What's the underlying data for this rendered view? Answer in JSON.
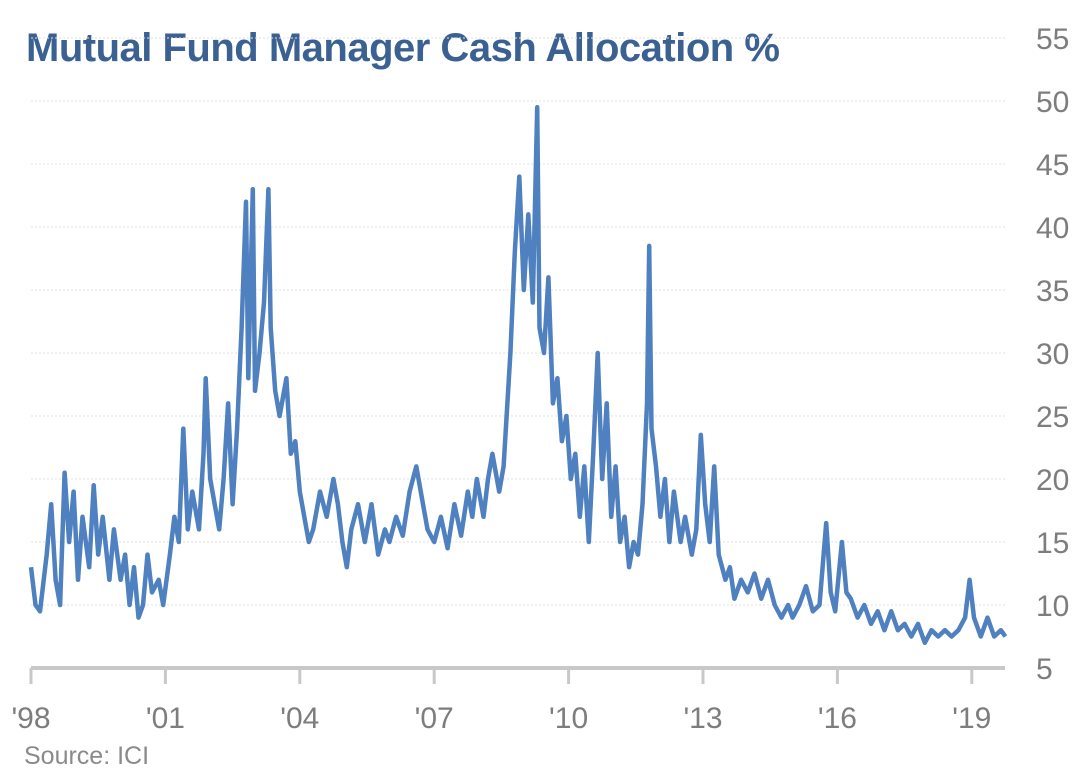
{
  "chart_data": {
    "type": "line",
    "title": "Mutual Fund Manager Cash Allocation %",
    "source": "Source: ICI",
    "xlabel": "",
    "ylabel": "",
    "ylim": [
      5,
      55
    ],
    "xlim": [
      1998,
      2019.75
    ],
    "y_ticks": [
      5,
      10,
      15,
      20,
      25,
      30,
      35,
      40,
      45,
      50,
      55
    ],
    "y_tick_labels": [
      "5",
      "10",
      "15",
      "20",
      "25",
      "30",
      "35",
      "40",
      "45",
      "50",
      "55"
    ],
    "x_ticks": [
      1998,
      2001,
      2004,
      2007,
      2010,
      2013,
      2016,
      2019
    ],
    "x_tick_labels": [
      "'98",
      "'01",
      "'04",
      "'07",
      "'10",
      "'13",
      "'16",
      "'19"
    ],
    "grid": true,
    "y_axis_position": "right",
    "line_color": "#4f80bf",
    "title_color": "#3a6192",
    "series": [
      {
        "name": "Cash Allocation %",
        "x": [
          1998.0,
          1998.1,
          1998.2,
          1998.35,
          1998.45,
          1998.55,
          1998.65,
          1998.75,
          1998.85,
          1998.95,
          1999.05,
          1999.15,
          1999.3,
          1999.4,
          1999.5,
          1999.6,
          1999.75,
          1999.85,
          2000.0,
          2000.1,
          2000.2,
          2000.3,
          2000.4,
          2000.5,
          2000.6,
          2000.7,
          2000.85,
          2000.95,
          2001.1,
          2001.2,
          2001.3,
          2001.4,
          2001.5,
          2001.6,
          2001.75,
          2001.85,
          2001.9,
          2002.0,
          2002.1,
          2002.2,
          2002.3,
          2002.4,
          2002.5,
          2002.6,
          2002.7,
          2002.8,
          2002.85,
          2002.95,
          2003.0,
          2003.1,
          2003.2,
          2003.3,
          2003.35,
          2003.45,
          2003.55,
          2003.7,
          2003.8,
          2003.9,
          2004.0,
          2004.1,
          2004.2,
          2004.3,
          2004.45,
          2004.6,
          2004.75,
          2004.85,
          2004.95,
          2005.05,
          2005.15,
          2005.3,
          2005.45,
          2005.6,
          2005.75,
          2005.9,
          2006.0,
          2006.15,
          2006.3,
          2006.45,
          2006.6,
          2006.75,
          2006.85,
          2007.0,
          2007.15,
          2007.3,
          2007.45,
          2007.6,
          2007.75,
          2007.85,
          2007.95,
          2008.1,
          2008.2,
          2008.3,
          2008.45,
          2008.55,
          2008.7,
          2008.8,
          2008.9,
          2009.0,
          2009.1,
          2009.2,
          2009.3,
          2009.35,
          2009.45,
          2009.55,
          2009.65,
          2009.75,
          2009.85,
          2009.95,
          2010.05,
          2010.15,
          2010.25,
          2010.35,
          2010.45,
          2010.55,
          2010.65,
          2010.75,
          2010.85,
          2010.95,
          2011.05,
          2011.15,
          2011.25,
          2011.35,
          2011.45,
          2011.55,
          2011.65,
          2011.75,
          2011.8,
          2011.85,
          2011.95,
          2012.05,
          2012.15,
          2012.25,
          2012.35,
          2012.5,
          2012.6,
          2012.75,
          2012.85,
          2012.95,
          2013.05,
          2013.15,
          2013.25,
          2013.35,
          2013.5,
          2013.6,
          2013.7,
          2013.85,
          2014.0,
          2014.15,
          2014.3,
          2014.45,
          2014.6,
          2014.75,
          2014.9,
          2015.0,
          2015.15,
          2015.3,
          2015.45,
          2015.6,
          2015.75,
          2015.85,
          2015.95,
          2016.1,
          2016.2,
          2016.3,
          2016.45,
          2016.6,
          2016.75,
          2016.9,
          2017.05,
          2017.2,
          2017.35,
          2017.5,
          2017.65,
          2017.8,
          2017.95,
          2018.1,
          2018.25,
          2018.4,
          2018.55,
          2018.7,
          2018.85,
          2018.95,
          2019.05,
          2019.2,
          2019.35,
          2019.5,
          2019.65,
          2019.75
        ],
        "values": [
          13,
          10,
          9.5,
          14,
          18,
          12,
          10,
          20.5,
          15,
          19,
          12,
          17,
          13,
          19.5,
          14,
          17,
          12,
          16,
          12,
          14,
          10,
          13,
          9,
          10,
          14,
          11,
          12,
          10,
          14,
          17,
          15,
          24,
          16,
          19,
          16,
          22,
          28,
          20,
          18,
          16,
          20,
          26,
          18,
          24,
          32,
          42,
          28,
          43,
          27,
          30,
          34,
          43,
          32,
          27,
          25,
          28,
          22,
          23,
          19,
          17,
          15,
          16,
          19,
          17,
          20,
          18,
          15,
          13,
          16,
          18,
          15,
          18,
          14,
          16,
          15,
          17,
          15.5,
          19,
          21,
          18,
          16,
          15,
          17,
          14.5,
          18,
          15.5,
          19,
          17,
          20,
          17,
          20,
          22,
          19,
          21,
          30,
          38,
          44,
          35,
          41,
          34,
          49.5,
          32,
          30,
          36,
          26,
          28,
          23,
          25,
          20,
          22,
          17,
          21,
          15,
          22,
          30,
          20,
          26,
          17,
          21,
          15,
          17,
          13,
          15,
          14,
          18,
          26,
          38.5,
          24,
          21,
          17,
          20,
          15,
          19,
          15,
          17,
          14,
          16,
          23.5,
          18,
          15,
          21,
          14,
          12,
          13,
          10.5,
          12,
          11,
          12.5,
          10.5,
          12,
          10,
          9,
          10,
          9,
          10,
          11.5,
          9.5,
          10,
          16.5,
          11,
          9.5,
          15,
          11,
          10.5,
          9,
          10,
          8.5,
          9.5,
          8,
          9.5,
          8,
          8.5,
          7.5,
          8.5,
          7,
          8,
          7.5,
          8,
          7.5,
          8,
          9,
          12,
          9,
          7.5,
          9,
          7.5,
          8,
          7.5
        ]
      }
    ]
  }
}
